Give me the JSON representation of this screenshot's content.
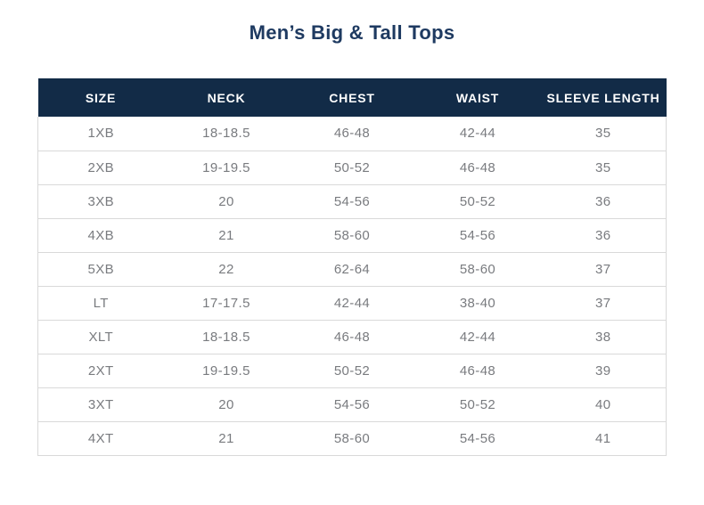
{
  "title": "Men’s Big & Tall Tops",
  "colors": {
    "header_bg": "#122b47",
    "title_text": "#1e3a61",
    "body_text": "#797b7f",
    "border": "#d9d9d9",
    "header_text": "#ffffff",
    "page_bg": "#ffffff"
  },
  "chart_data": {
    "type": "table",
    "title": "Men’s Big & Tall Tops",
    "columns": [
      "SIZE",
      "NECK",
      "CHEST",
      "WAIST",
      "SLEEVE LENGTH"
    ],
    "rows": [
      [
        "1XB",
        "18-18.5",
        "46-48",
        "42-44",
        "35"
      ],
      [
        "2XB",
        "19-19.5",
        "50-52",
        "46-48",
        "35"
      ],
      [
        "3XB",
        "20",
        "54-56",
        "50-52",
        "36"
      ],
      [
        "4XB",
        "21",
        "58-60",
        "54-56",
        "36"
      ],
      [
        "5XB",
        "22",
        "62-64",
        "58-60",
        "37"
      ],
      [
        "LT",
        "17-17.5",
        "42-44",
        "38-40",
        "37"
      ],
      [
        "XLT",
        "18-18.5",
        "46-48",
        "42-44",
        "38"
      ],
      [
        "2XT",
        "19-19.5",
        "50-52",
        "46-48",
        "39"
      ],
      [
        "3XT",
        "20",
        "54-56",
        "50-52",
        "40"
      ],
      [
        "4XT",
        "21",
        "58-60",
        "54-56",
        "41"
      ]
    ],
    "layout": {
      "grid": "horizontal-row-separators-only",
      "header_style": "solid-navy-band",
      "cell_alignment": "center"
    }
  }
}
